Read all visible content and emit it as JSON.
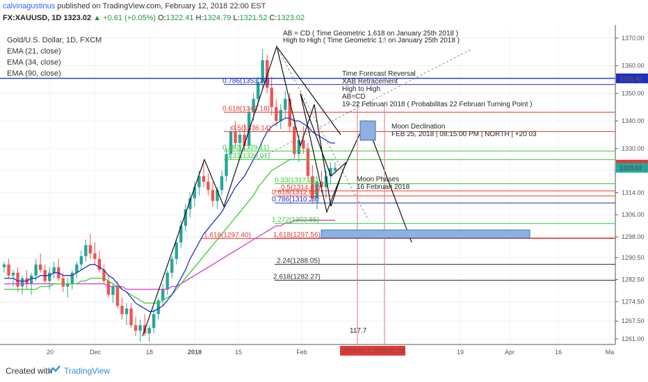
{
  "header": {
    "author": "calvinagustinus",
    "published_text": " published on TradingView.com, February 12, 2018 22:00 EST",
    "symbol": "FX:XAUUSD, 1D",
    "last": "1323.02",
    "change": "▲ +0.61 (+0.05%)",
    "o_label": "O:",
    "o": "1322.41",
    "h_label": "H:",
    "h": "1324.79",
    "l_label": "L:",
    "l": "1321.52",
    "c_label": "C:",
    "c": "1323.02"
  },
  "legend": {
    "title": "Gold/U.S. Dollar, 1D, FXCM",
    "ema1": "EMA (21, close)",
    "ema2": "EMA (34, close)",
    "ema3": "EMA (90, close)"
  },
  "footer": {
    "created": "Created with",
    "brand": "TradingView"
  },
  "colors": {
    "up": "#26a69a",
    "down": "#ef5350",
    "ema21": "#1f2fbf",
    "ema34": "#33cc33",
    "ema90": "#dd33cc",
    "fib_blue": "#1f2fbf",
    "fib_red": "#e53935",
    "fib_green": "#33cc33",
    "fib_black": "#333333",
    "box_fill": "#8fb1e0",
    "box_stroke": "#3a6fc2"
  },
  "chart_data": {
    "type": "line",
    "title": "Gold/U.S. Dollar, 1D, FXCM",
    "ylim": [
      1259,
      1374
    ],
    "y_ticks": [
      "1370.00",
      "1360.00",
      "1350.00",
      "1340.00",
      "1330.00",
      "1322.00",
      "1314.00",
      "1306.00",
      "1298.00",
      "1290.50",
      "1282.50",
      "1274.50",
      "1267.50",
      "1261.00"
    ],
    "y_tick_values": [
      1370,
      1360,
      1350,
      1340,
      1330,
      1322,
      1314,
      1306,
      1298,
      1290.5,
      1282.5,
      1274.5,
      1267.5,
      1261
    ],
    "x_ticks": [
      "20",
      "Dec",
      "18",
      "2018",
      "15",
      "Feb",
      "19",
      "Apr",
      "16",
      "Ma"
    ],
    "price_badges": [
      {
        "label": "1355.42",
        "value": 1355.42,
        "color": "#1f2fbf"
      },
      {
        "label": "1324.16",
        "value": 1324.16,
        "color": "#e53935"
      },
      {
        "label": "1323.02",
        "value": 1323.02,
        "color": "#26a69a"
      }
    ],
    "date_badges": [
      "2018-02-16",
      "2018-02-26"
    ],
    "fib_levels": [
      {
        "label": "0.786(1353.20)",
        "value": 1353.2,
        "color": "blue"
      },
      {
        "label": "0.618(1343.18)",
        "value": 1343.18,
        "color": "red"
      },
      {
        "label": "0.5(1336.14)",
        "value": 1336.14,
        "color": "red"
      },
      {
        "label": "0.382(1329.11)",
        "value": 1329.11,
        "color": "green"
      },
      {
        "label": "0.33(1326.01)",
        "value": 1326.01,
        "color": "green"
      },
      {
        "label": "0.33(1317.26)",
        "value": 1317.26,
        "color": "green"
      },
      {
        "label": "0.5(1314.65)",
        "value": 1314.65,
        "color": "red"
      },
      {
        "label": "0.618(1312.84)",
        "value": 1312.84,
        "color": "red"
      },
      {
        "label": "0.786(1310.28)",
        "value": 1310.28,
        "color": "blue"
      },
      {
        "label": "1.272(1302.85)",
        "value": 1302.85,
        "color": "green"
      },
      {
        "label": "1.618(1297.40)",
        "value": 1297.4,
        "color": "red"
      },
      {
        "label": "1.618(1297.56)",
        "value": 1297.56,
        "color": "red"
      },
      {
        "label": "2.24(1288.05)",
        "value": 1288.05,
        "color": "black"
      },
      {
        "label": "2.618(1282.27)",
        "value": 1282.27,
        "color": "black"
      }
    ],
    "annotations": {
      "ab_cd": "AB = CD ( Time Geometric 1.618 on January 25th 2018 )",
      "high_to_high": "High to High ( Time Geometric 1:! on January 25th 2018 )",
      "forecast1": "Time Forecast Reversal",
      "forecast2": "XAB Retracement",
      "forecast3": "High to High",
      "forecast4": "AB=CD",
      "forecast5": "19-22 Februari 2018 ( Probabilitas 22 Februari Turning Point )",
      "moon_decl": "Moon Declination",
      "moon_decl_detail": "FEB 25, 2018 | 08:15:00 PM | NORTH | +20 03",
      "moon_phases": "Moon Phases",
      "moon_phases_date": "16 Februari 2018",
      "small_tag": "117.7"
    },
    "candles": [
      [
        1287,
        1289,
        1285,
        1288
      ],
      [
        1288,
        1290,
        1283,
        1284
      ],
      [
        1284,
        1286,
        1280,
        1285
      ],
      [
        1285,
        1287,
        1278,
        1280
      ],
      [
        1280,
        1284,
        1277,
        1283
      ],
      [
        1283,
        1286,
        1279,
        1281
      ],
      [
        1281,
        1285,
        1277,
        1284
      ],
      [
        1284,
        1290,
        1282,
        1288
      ],
      [
        1288,
        1292,
        1285,
        1286
      ],
      [
        1286,
        1288,
        1281,
        1282
      ],
      [
        1282,
        1287,
        1279,
        1285
      ],
      [
        1285,
        1289,
        1283,
        1287
      ],
      [
        1287,
        1290,
        1282,
        1283
      ],
      [
        1283,
        1285,
        1278,
        1280
      ],
      [
        1280,
        1283,
        1276,
        1281
      ],
      [
        1281,
        1286,
        1279,
        1285
      ],
      [
        1285,
        1289,
        1283,
        1288
      ],
      [
        1288,
        1293,
        1286,
        1291
      ],
      [
        1291,
        1297,
        1289,
        1295
      ],
      [
        1295,
        1299,
        1290,
        1292
      ],
      [
        1292,
        1296,
        1288,
        1290
      ],
      [
        1290,
        1293,
        1285,
        1286
      ],
      [
        1286,
        1288,
        1281,
        1282
      ],
      [
        1282,
        1284,
        1276,
        1277
      ],
      [
        1277,
        1281,
        1274,
        1280
      ],
      [
        1280,
        1282,
        1272,
        1273
      ],
      [
        1273,
        1276,
        1268,
        1270
      ],
      [
        1270,
        1274,
        1266,
        1272
      ],
      [
        1272,
        1274,
        1265,
        1266
      ],
      [
        1266,
        1269,
        1262,
        1264
      ],
      [
        1264,
        1268,
        1260,
        1266
      ],
      [
        1266,
        1270,
        1262,
        1263
      ],
      [
        1263,
        1266,
        1260,
        1265
      ],
      [
        1265,
        1272,
        1263,
        1270
      ],
      [
        1270,
        1276,
        1268,
        1275
      ],
      [
        1275,
        1281,
        1273,
        1279
      ],
      [
        1279,
        1286,
        1277,
        1285
      ],
      [
        1285,
        1291,
        1283,
        1290
      ],
      [
        1290,
        1297,
        1288,
        1296
      ],
      [
        1296,
        1304,
        1294,
        1302
      ],
      [
        1302,
        1310,
        1300,
        1308
      ],
      [
        1308,
        1314,
        1305,
        1312
      ],
      [
        1312,
        1318,
        1309,
        1316
      ],
      [
        1316,
        1322,
        1313,
        1320
      ],
      [
        1320,
        1325,
        1316,
        1318
      ],
      [
        1318,
        1321,
        1313,
        1315
      ],
      [
        1315,
        1318,
        1309,
        1311
      ],
      [
        1311,
        1316,
        1308,
        1315
      ],
      [
        1315,
        1322,
        1313,
        1320
      ],
      [
        1320,
        1330,
        1318,
        1328
      ],
      [
        1328,
        1338,
        1326,
        1336
      ],
      [
        1336,
        1340,
        1330,
        1332
      ],
      [
        1332,
        1337,
        1328,
        1335
      ],
      [
        1335,
        1339,
        1329,
        1331
      ],
      [
        1331,
        1345,
        1330,
        1343
      ],
      [
        1343,
        1350,
        1340,
        1348
      ],
      [
        1348,
        1356,
        1345,
        1354
      ],
      [
        1354,
        1366,
        1352,
        1362
      ],
      [
        1362,
        1364,
        1350,
        1352
      ],
      [
        1352,
        1356,
        1342,
        1345
      ],
      [
        1345,
        1348,
        1338,
        1340
      ],
      [
        1340,
        1346,
        1337,
        1344
      ],
      [
        1344,
        1351,
        1341,
        1348
      ],
      [
        1348,
        1350,
        1336,
        1338
      ],
      [
        1338,
        1341,
        1326,
        1328
      ],
      [
        1328,
        1335,
        1325,
        1333
      ],
      [
        1333,
        1338,
        1328,
        1330
      ],
      [
        1330,
        1332,
        1318,
        1320
      ],
      [
        1320,
        1324,
        1310,
        1312
      ],
      [
        1312,
        1320,
        1308,
        1318
      ],
      [
        1318,
        1322,
        1314,
        1316
      ],
      [
        1316,
        1322,
        1312,
        1320
      ],
      [
        1320,
        1325,
        1317,
        1323
      ],
      [
        1322,
        1325,
        1321,
        1323
      ]
    ],
    "ema21": [
      1283,
      1283,
      1283,
      1282,
      1282,
      1282,
      1283,
      1283,
      1284,
      1284,
      1284,
      1285,
      1285,
      1284,
      1284,
      1284,
      1285,
      1286,
      1287,
      1288,
      1288,
      1287,
      1286,
      1284,
      1283,
      1281,
      1279,
      1278,
      1276,
      1274,
      1273,
      1272,
      1271,
      1271,
      1272,
      1273,
      1275,
      1277,
      1280,
      1283,
      1286,
      1290,
      1293,
      1296,
      1299,
      1301,
      1303,
      1305,
      1307,
      1310,
      1313,
      1316,
      1318,
      1320,
      1323,
      1326,
      1329,
      1333,
      1336,
      1338,
      1339,
      1340,
      1341,
      1341,
      1340,
      1340,
      1339,
      1338,
      1336,
      1335,
      1334,
      1333,
      1332,
      1332
    ],
    "ema34": [
      1279,
      1279,
      1279,
      1279,
      1279,
      1279,
      1279,
      1279,
      1280,
      1280,
      1280,
      1281,
      1281,
      1281,
      1281,
      1281,
      1281,
      1282,
      1282,
      1283,
      1283,
      1283,
      1283,
      1282,
      1281,
      1280,
      1279,
      1278,
      1277,
      1276,
      1275,
      1274,
      1274,
      1274,
      1274,
      1275,
      1276,
      1277,
      1279,
      1281,
      1283,
      1285,
      1287,
      1289,
      1291,
      1293,
      1295,
      1297,
      1299,
      1301,
      1303,
      1305,
      1307,
      1309,
      1311,
      1313,
      1316,
      1318,
      1320,
      1322,
      1323,
      1324,
      1325,
      1326,
      1326,
      1326,
      1326,
      1326,
      1326,
      1326,
      1326,
      1326,
      1326,
      1326
    ],
    "ema90": [
      1281,
      1281,
      1281,
      1281,
      1281,
      1281,
      1281,
      1281,
      1281,
      1281,
      1281,
      1281,
      1281,
      1281,
      1281,
      1281,
      1281,
      1281,
      1281,
      1281,
      1281,
      1281,
      1281,
      1280,
      1280,
      1280,
      1280,
      1279,
      1279,
      1279,
      1279,
      1279,
      1279,
      1279,
      1279,
      1279,
      1279,
      1280,
      1280,
      1281,
      1282,
      1283,
      1284,
      1285,
      1286,
      1287,
      1288,
      1289,
      1290,
      1291,
      1292,
      1293,
      1294,
      1295,
      1296,
      1297,
      1298,
      1299,
      1300,
      1301,
      1302,
      1302,
      1303,
      1303,
      1304,
      1304,
      1304,
      1304,
      1304,
      1304,
      1304,
      1304,
      1304,
      1304
    ]
  }
}
